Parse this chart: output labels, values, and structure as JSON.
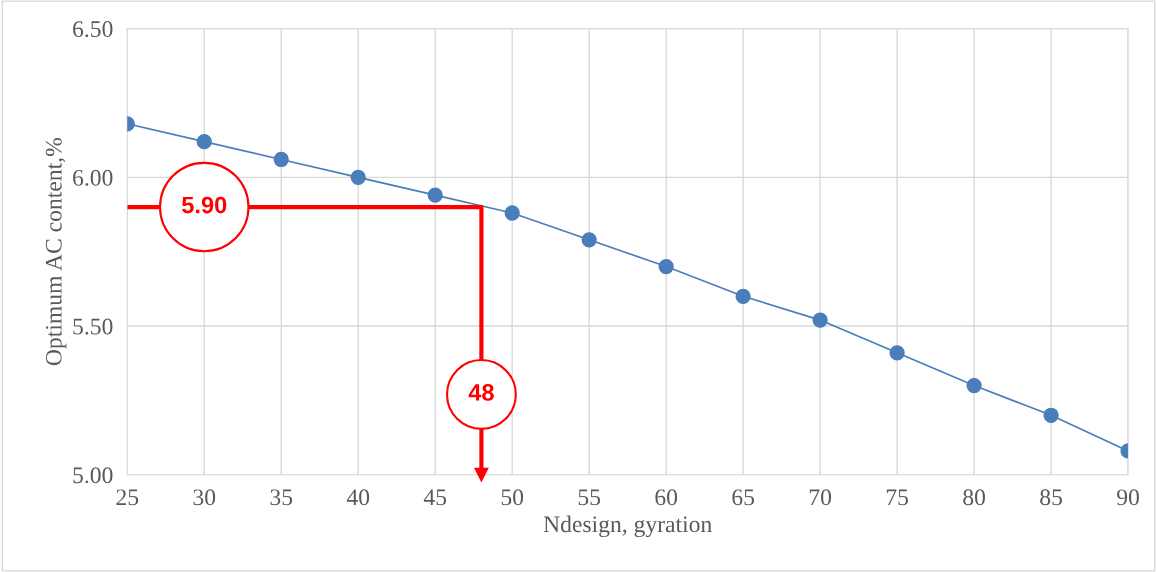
{
  "chart_data": {
    "type": "line",
    "xlabel": "Ndesign, gyration",
    "ylabel": "Optimum AC content,%",
    "series": [
      {
        "color": "#4a7ebb",
        "x": [
          25,
          30,
          35,
          40,
          45,
          50,
          55,
          60,
          65,
          70,
          75,
          80,
          85,
          90
        ],
        "values": [
          6.18,
          6.12,
          6.06,
          6.0,
          5.94,
          5.88,
          5.79,
          5.7,
          5.6,
          5.52,
          5.41,
          5.3,
          5.2,
          5.08
        ],
        "marker": "circle"
      },
      {
        "color": "#ff0000",
        "x": [
          25,
          48,
          48
        ],
        "values": [
          5.9,
          5.9,
          5.0
        ],
        "marker": "none"
      }
    ],
    "annotations": [
      {
        "text": "5.90",
        "x": 30,
        "y": 5.9
      },
      {
        "text": "48",
        "x": 48,
        "y": 5.27
      }
    ],
    "xlim": [
      25,
      90
    ],
    "xticks": [
      25,
      30,
      35,
      40,
      45,
      50,
      55,
      60,
      65,
      70,
      75,
      80,
      85,
      90
    ],
    "ylim": [
      5.0,
      6.5
    ],
    "yticks": [
      {
        "value": 5.0,
        "label": "5.00"
      },
      {
        "value": 5.5,
        "label": "5.50"
      },
      {
        "value": 6.0,
        "label": "6.00"
      },
      {
        "value": 6.5,
        "label": "6.50"
      }
    ],
    "grid": true,
    "legend": false
  }
}
